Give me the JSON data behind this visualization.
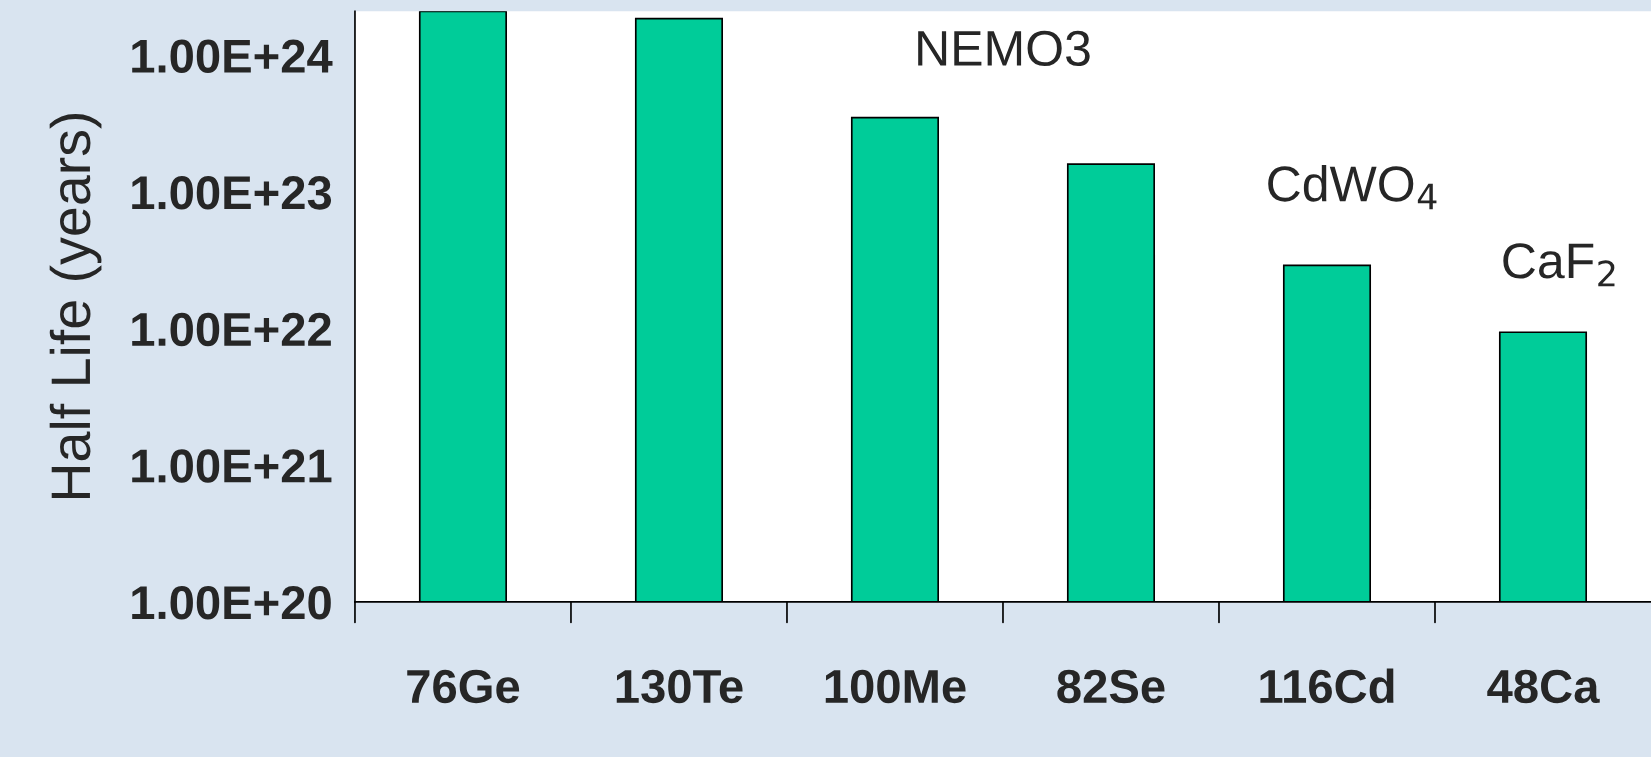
{
  "chart_data": {
    "type": "bar",
    "ylabel": "Half Life (years)",
    "categories": [
      "76Ge",
      "130Te",
      "100Me",
      "82Se",
      "116Cd",
      "48Ca"
    ],
    "values": [
      2.1e+24,
      1.86e+24,
      3.5e+23,
      1.6e+23,
      2.9e+22,
      9.4e+21
    ],
    "color": "#00cc99",
    "log": true,
    "ylim": [
      1e+20,
      2.1e+24
    ],
    "yticks": [
      {
        "value": 1e+20,
        "label": "1.00E+20"
      },
      {
        "value": 1e+21,
        "label": "1.00E+21"
      },
      {
        "value": 1e+22,
        "label": "1.00E+22"
      },
      {
        "value": 1e+23,
        "label": "1.00E+23"
      },
      {
        "value": 1e+24,
        "label": "1.00E+24"
      }
    ],
    "annotations": [
      "NEMO3",
      "CdWO$_{4}$",
      "CaF$_{2}$"
    ]
  }
}
